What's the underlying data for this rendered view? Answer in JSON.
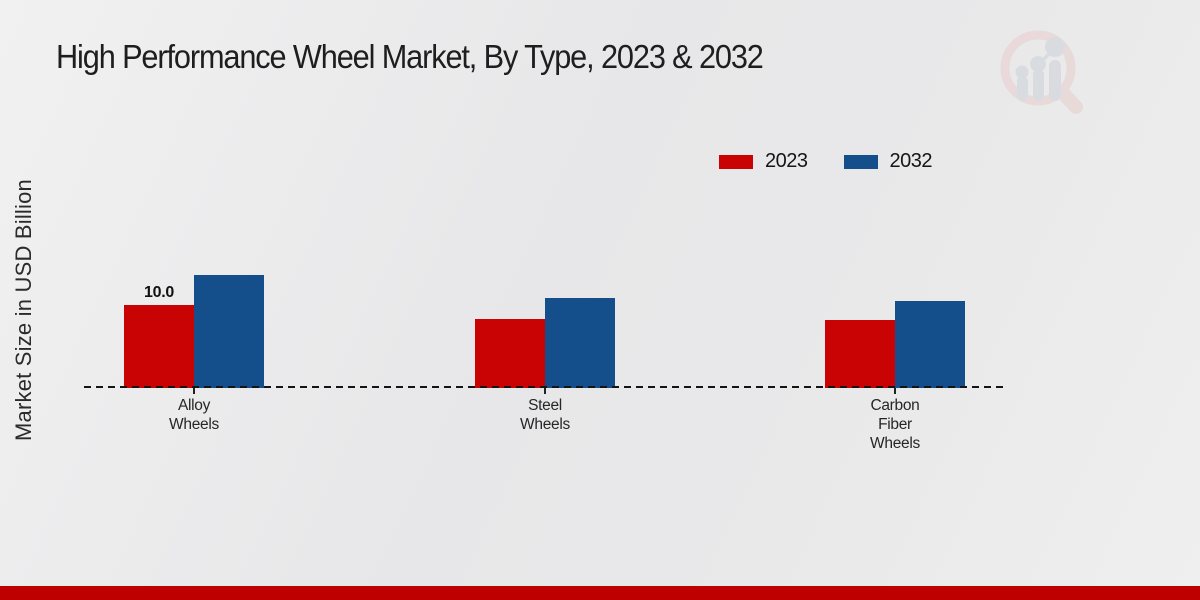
{
  "title": "High Performance Wheel Market, By Type, 2023 & 2032",
  "ylabel": "Market Size in USD Billion",
  "footer": {
    "bar_color": "#bf0000"
  },
  "watermark": {
    "icon": "magnifier-bar-chart-logo",
    "ring_color": "#e9cbcb",
    "bar_color": "#c9ced7"
  },
  "chart_data": {
    "type": "bar",
    "title": "High Performance Wheel Market, By Type, 2023 & 2032",
    "categories": [
      "Alloy Wheels",
      "Steel Wheels",
      "Carbon Fiber Wheels"
    ],
    "category_lines": [
      [
        "Alloy",
        "Wheels"
      ],
      [
        "Steel",
        "Wheels"
      ],
      [
        "Carbon",
        "Fiber",
        "Wheels"
      ]
    ],
    "series": [
      {
        "name": "2023",
        "color": "#c90304",
        "values": [
          10.0,
          8.3,
          8.2
        ],
        "data_labels": [
          "10.0",
          "",
          ""
        ]
      },
      {
        "name": "2032",
        "color": "#144f8c",
        "values": [
          13.5,
          10.8,
          10.4
        ],
        "data_labels": [
          "",
          "",
          ""
        ]
      }
    ],
    "xlabel": "",
    "ylabel": "Market Size in USD Billion",
    "ylim": [
      0,
      15
    ],
    "grid": false,
    "baseline_style": "dashed",
    "legend_position": "upper right",
    "bar_value_labels_shown": [
      "10.0"
    ]
  }
}
